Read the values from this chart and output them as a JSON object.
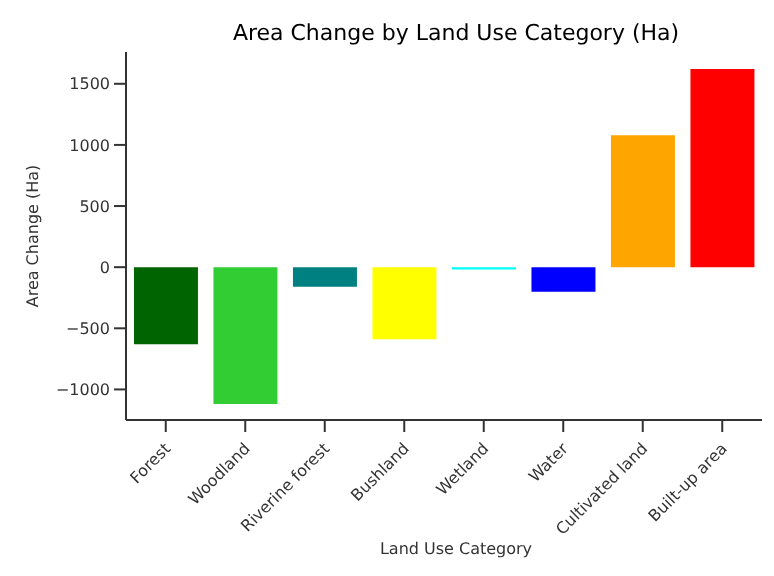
{
  "chart_data": {
    "type": "bar",
    "title": "Area Change by Land Use Category (Ha)",
    "xlabel": "Land Use Category",
    "ylabel": "Area Change (Ha)",
    "categories": [
      "Forest",
      "Woodland",
      "Riverine forest",
      "Bushland",
      "Wetland",
      "Water",
      "Cultivated land",
      "Built-up area"
    ],
    "values": [
      -630,
      -1120,
      -160,
      -590,
      -20,
      -200,
      1080,
      1620
    ],
    "colors": [
      "#006400",
      "#32cd32",
      "#008080",
      "#ffff00",
      "#00ffff",
      "#0000ff",
      "#ffa500",
      "#ff0000"
    ],
    "ylim": [
      -1250,
      1760
    ],
    "yticks": [
      -1000,
      -500,
      0,
      500,
      1000,
      1500
    ],
    "grid": false,
    "legend": false
  }
}
